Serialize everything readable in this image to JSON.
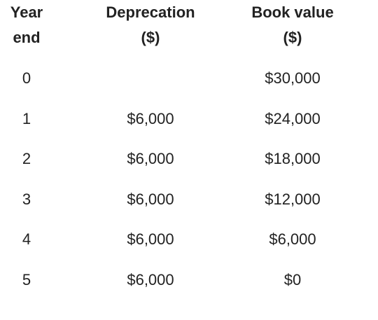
{
  "headers": {
    "year_line1": "Year",
    "year_line2": "end",
    "dep_line1": "Deprecation",
    "dep_line2": "($)",
    "book_line1": "Book value",
    "book_line2": "($)"
  },
  "rows": [
    {
      "year": "0",
      "depreciation": "",
      "book_value": "$30,000"
    },
    {
      "year": "1",
      "depreciation": "$6,000",
      "book_value": "$24,000"
    },
    {
      "year": "2",
      "depreciation": "$6,000",
      "book_value": "$18,000"
    },
    {
      "year": "3",
      "depreciation": "$6,000",
      "book_value": "$12,000"
    },
    {
      "year": "4",
      "depreciation": "$6,000",
      "book_value": "$6,000"
    },
    {
      "year": "5",
      "depreciation": "$6,000",
      "book_value": "$0"
    }
  ]
}
